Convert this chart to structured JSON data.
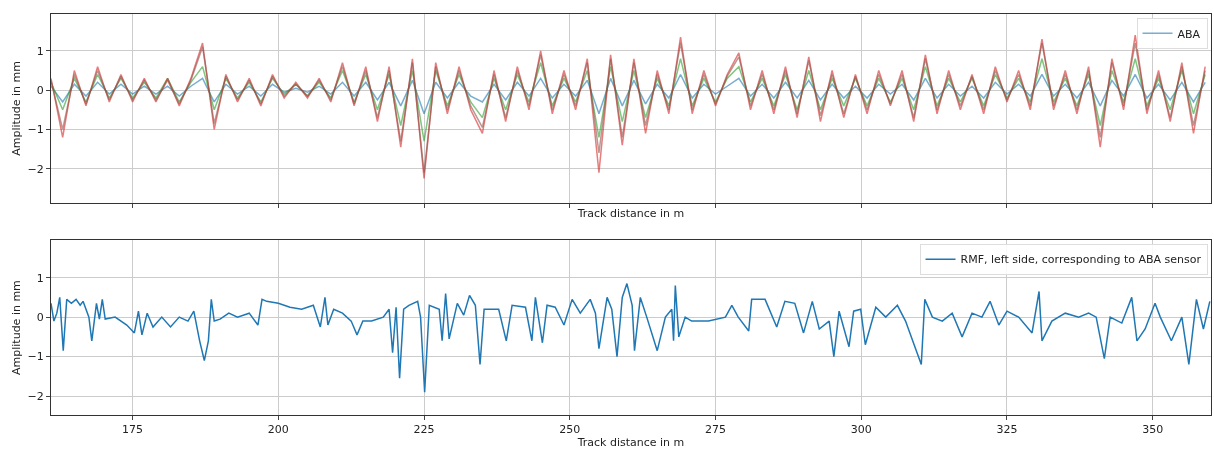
{
  "chart_data": [
    {
      "type": "line",
      "xlabel": "Track distance in m",
      "ylabel": "Amplitude in mm",
      "xlim": [
        161,
        360
      ],
      "ylim": [
        -2.87,
        1.94
      ],
      "xticks": [
        175,
        200,
        225,
        250,
        275,
        300,
        325,
        350
      ],
      "yticks": [
        -2,
        -1,
        0,
        1
      ],
      "grid": true,
      "legend": "top right",
      "tick_labels": "y",
      "x": [
        161,
        163,
        165,
        167,
        169,
        171,
        173,
        175,
        177,
        179,
        181,
        183,
        185,
        187,
        189,
        191,
        193,
        195,
        197,
        199,
        201,
        203,
        205,
        207,
        209,
        211,
        213,
        215,
        217,
        219,
        221,
        223,
        225,
        227,
        229,
        231,
        233,
        235,
        237,
        239,
        241,
        243,
        245,
        247,
        249,
        251,
        253,
        255,
        257,
        259,
        261,
        263,
        265,
        267,
        269,
        271,
        273,
        275,
        277,
        279,
        281,
        283,
        285,
        287,
        289,
        291,
        293,
        295,
        297,
        299,
        301,
        303,
        305,
        307,
        309,
        311,
        313,
        315,
        317,
        319,
        321,
        323,
        325,
        327,
        329,
        331,
        333,
        335,
        337,
        339,
        341,
        343,
        345,
        347,
        349,
        351,
        353,
        355,
        357,
        359
      ],
      "series": [
        {
          "name": "ABA",
          "color": "#1f77b4",
          "values": [
            0.1,
            -0.3,
            0.15,
            -0.15,
            0.2,
            -0.1,
            0.15,
            -0.1,
            0.1,
            -0.1,
            0.1,
            -0.15,
            0.1,
            0.3,
            -0.3,
            0.15,
            -0.1,
            0.1,
            -0.15,
            0.15,
            -0.05,
            0.05,
            -0.05,
            0.1,
            -0.1,
            0.2,
            -0.15,
            0.2,
            -0.25,
            0.2,
            -0.4,
            0.25,
            -0.6,
            0.2,
            -0.2,
            0.2,
            -0.15,
            -0.3,
            0.15,
            -0.25,
            0.2,
            -0.15,
            0.3,
            -0.2,
            0.15,
            -0.15,
            0.25,
            -0.6,
            0.3,
            -0.4,
            0.25,
            -0.35,
            0.15,
            -0.2,
            0.4,
            -0.2,
            0.15,
            -0.1,
            0.1,
            0.3,
            -0.15,
            0.15,
            -0.2,
            0.2,
            -0.2,
            0.25,
            -0.25,
            0.15,
            -0.2,
            0.1,
            -0.2,
            0.15,
            -0.1,
            0.15,
            -0.25,
            0.3,
            -0.2,
            0.15,
            -0.15,
            0.1,
            -0.2,
            0.2,
            -0.1,
            0.15,
            -0.15,
            0.4,
            -0.15,
            0.15,
            -0.2,
            0.2,
            -0.4,
            0.25,
            -0.15,
            0.4,
            -0.2,
            0.15,
            -0.25,
            0.2,
            -0.3,
            0.2
          ]
        },
        {
          "color": "#2ca02c",
          "values": [
            0.2,
            -0.5,
            0.3,
            -0.3,
            0.4,
            -0.2,
            0.3,
            -0.2,
            0.2,
            -0.2,
            0.3,
            -0.3,
            0.2,
            0.6,
            -0.5,
            0.3,
            -0.2,
            0.2,
            -0.3,
            0.3,
            -0.1,
            0.15,
            -0.15,
            0.2,
            -0.2,
            0.5,
            -0.3,
            0.4,
            -0.5,
            0.4,
            -0.9,
            0.5,
            -1.3,
            0.5,
            -0.4,
            0.4,
            -0.3,
            -0.7,
            0.3,
            -0.5,
            0.4,
            -0.3,
            0.7,
            -0.4,
            0.3,
            -0.3,
            0.5,
            -1.2,
            0.6,
            -0.8,
            0.5,
            -0.7,
            0.3,
            -0.4,
            0.8,
            -0.4,
            0.3,
            -0.3,
            0.3,
            0.6,
            -0.3,
            0.3,
            -0.4,
            0.4,
            -0.5,
            0.5,
            -0.5,
            0.3,
            -0.4,
            0.3,
            -0.4,
            0.3,
            -0.3,
            0.3,
            -0.5,
            0.6,
            -0.4,
            0.3,
            -0.3,
            0.3,
            -0.4,
            0.4,
            -0.2,
            0.3,
            -0.3,
            0.8,
            -0.3,
            0.3,
            -0.4,
            0.4,
            -0.9,
            0.5,
            -0.3,
            0.8,
            -0.4,
            0.3,
            -0.5,
            0.5,
            -0.6,
            0.4
          ]
        },
        {
          "color": "#d62728",
          "values": [
            0.3,
            -1.2,
            0.5,
            -0.4,
            0.6,
            -0.3,
            0.4,
            -0.3,
            0.3,
            -0.3,
            0.3,
            -0.4,
            0.3,
            1.2,
            -1.0,
            0.4,
            -0.3,
            0.3,
            -0.4,
            0.4,
            -0.2,
            0.2,
            -0.2,
            0.3,
            -0.3,
            0.7,
            -0.4,
            0.6,
            -0.8,
            0.6,
            -1.45,
            0.8,
            -2.25,
            0.7,
            -0.6,
            0.6,
            -0.5,
            -1.1,
            0.5,
            -0.8,
            0.6,
            -0.5,
            1.0,
            -0.6,
            0.5,
            -0.5,
            0.8,
            -2.1,
            0.9,
            -1.4,
            0.8,
            -1.1,
            0.5,
            -0.6,
            1.35,
            -0.6,
            0.5,
            -0.4,
            0.4,
            0.95,
            -0.5,
            0.5,
            -0.6,
            0.6,
            -0.7,
            0.85,
            -0.8,
            0.5,
            -0.7,
            0.4,
            -0.6,
            0.5,
            -0.4,
            0.5,
            -0.8,
            0.9,
            -0.6,
            0.5,
            -0.5,
            0.4,
            -0.6,
            0.6,
            -0.3,
            0.5,
            -0.5,
            1.3,
            -0.5,
            0.5,
            -0.6,
            0.6,
            -1.45,
            0.8,
            -0.5,
            1.4,
            -0.6,
            0.5,
            -0.8,
            0.7,
            -1.1,
            0.6
          ]
        },
        {
          "color": "#8c564b",
          "values": [
            0.25,
            -1.0,
            0.4,
            -0.35,
            0.5,
            -0.25,
            0.35,
            -0.25,
            0.25,
            -0.25,
            0.25,
            -0.35,
            0.25,
            1.1,
            -0.85,
            0.35,
            -0.25,
            0.25,
            -0.35,
            0.35,
            -0.15,
            0.15,
            -0.15,
            0.25,
            -0.25,
            0.6,
            -0.35,
            0.5,
            -0.7,
            0.5,
            -1.3,
            0.7,
            -2.1,
            0.6,
            -0.5,
            0.5,
            -0.4,
            -0.95,
            0.4,
            -0.7,
            0.5,
            -0.4,
            0.9,
            -0.5,
            0.4,
            -0.4,
            0.7,
            -1.6,
            0.8,
            -1.2,
            0.7,
            -0.9,
            0.4,
            -0.5,
            1.2,
            -0.5,
            0.4,
            -0.35,
            0.35,
            0.85,
            -0.4,
            0.4,
            -0.5,
            0.5,
            -0.6,
            0.75,
            -0.65,
            0.4,
            -0.6,
            0.35,
            -0.5,
            0.4,
            -0.35,
            0.4,
            -0.7,
            0.8,
            -0.5,
            0.4,
            -0.4,
            0.35,
            -0.5,
            0.5,
            -0.25,
            0.4,
            -0.4,
            1.2,
            -0.4,
            0.4,
            -0.5,
            0.5,
            -1.2,
            0.7,
            -0.4,
            1.2,
            -0.5,
            0.4,
            -0.7,
            0.6,
            -0.9,
            0.5
          ]
        }
      ]
    },
    {
      "type": "line",
      "xlabel": "Track distance in m",
      "ylabel": "Amplitude in mm",
      "xlim": [
        161,
        360
      ],
      "ylim": [
        -2.48,
        1.95
      ],
      "xticks": [
        175,
        200,
        225,
        250,
        275,
        300,
        325,
        350
      ],
      "yticks": [
        -2,
        -1,
        0,
        1
      ],
      "grid": true,
      "legend": "top right",
      "series": [
        {
          "name": "RMF, left side, corresponding to ABA sensor",
          "color": "#1f77b4",
          "x": [
            161,
            161.5,
            162,
            162.5,
            163.1,
            163.7,
            164.5,
            165.3,
            166,
            166.5,
            167.5,
            168,
            168.8,
            169.3,
            169.8,
            170.3,
            172,
            174,
            175.3,
            176,
            176.6,
            177.5,
            178.5,
            180,
            181.5,
            183,
            184.5,
            185.5,
            186.5,
            187.3,
            188,
            188.5,
            189,
            190,
            191.5,
            193,
            195,
            196.5,
            197.2,
            198,
            200,
            202,
            204,
            206,
            207.2,
            208,
            208.5,
            209.5,
            211,
            212.5,
            213.5,
            214.5,
            216,
            218,
            219,
            219.6,
            220.2,
            220.8,
            221.5,
            222.4,
            223.9,
            224.4,
            225.1,
            225.9,
            227.6,
            228.1,
            228.7,
            229.3,
            230.7,
            231.8,
            232.8,
            233.8,
            234.6,
            235.3,
            237.8,
            239.1,
            240.1,
            242.4,
            243.5,
            244.1,
            245.3,
            246.1,
            247.5,
            249,
            250.4,
            251.8,
            253.5,
            254.4,
            255,
            256.4,
            257.2,
            258.1,
            259,
            259.8,
            260.7,
            261.1,
            262.1,
            263.2,
            265,
            266.4,
            267.5,
            267.8,
            268.1,
            268.7,
            269.8,
            270.9,
            273.8,
            276.7,
            277.8,
            278.9,
            280.7,
            281.2,
            283.5,
            285.5,
            286.9,
            288.6,
            290.1,
            291.6,
            292.8,
            294.5,
            295.3,
            296.2,
            297.9,
            298.7,
            299.9,
            300.7,
            302.5,
            304.2,
            306.2,
            307.6,
            308.7,
            310.3,
            310.9,
            312.2,
            313.9,
            315.6,
            317.3,
            319,
            320.7,
            322.1,
            323.6,
            325,
            327,
            329.3,
            330.5,
            331,
            332.7,
            335,
            337.3,
            339,
            340.3,
            341.7,
            342.7,
            344.7,
            346.4,
            347.3,
            348.7,
            350.4,
            351.3,
            353.2,
            355,
            356.2,
            357.5,
            358.7,
            359.8
          ],
          "values": [
            0.35,
            -0.1,
            0.1,
            0.5,
            -0.85,
            0.45,
            0.35,
            0.45,
            0.3,
            0.4,
            0.0,
            -0.6,
            0.35,
            -0.05,
            0.45,
            -0.05,
            0.0,
            -0.2,
            -0.4,
            0.15,
            -0.45,
            0.1,
            -0.25,
            0.0,
            -0.25,
            0.0,
            -0.1,
            0.15,
            -0.6,
            -1.1,
            -0.6,
            0.45,
            -0.1,
            -0.05,
            0.1,
            0.0,
            0.1,
            -0.2,
            0.45,
            0.4,
            0.35,
            0.25,
            0.2,
            0.3,
            -0.25,
            0.5,
            -0.2,
            0.2,
            0.1,
            -0.1,
            -0.45,
            -0.1,
            -0.1,
            0.0,
            0.2,
            -0.9,
            0.25,
            -1.55,
            0.2,
            0.3,
            0.4,
            0.0,
            -1.9,
            0.3,
            0.2,
            -0.6,
            0.6,
            -0.55,
            0.35,
            0.05,
            0.55,
            0.3,
            -1.2,
            0.2,
            0.2,
            -0.6,
            0.3,
            0.25,
            -0.6,
            0.5,
            -0.65,
            0.3,
            0.25,
            -0.2,
            0.45,
            0.1,
            0.45,
            0.1,
            -0.8,
            0.5,
            0.2,
            -1.0,
            0.5,
            0.85,
            0.3,
            -0.85,
            0.5,
            0.0,
            -0.85,
            0.0,
            0.2,
            -0.6,
            0.8,
            -0.5,
            0.0,
            -0.1,
            -0.1,
            0.0,
            0.3,
            0.0,
            -0.35,
            0.45,
            0.45,
            -0.25,
            0.4,
            0.35,
            -0.4,
            0.4,
            -0.3,
            -0.1,
            -1.0,
            0.15,
            -0.75,
            0.15,
            0.2,
            -0.7,
            0.25,
            0.0,
            0.3,
            -0.1,
            -0.55,
            -1.2,
            0.45,
            0.0,
            -0.1,
            0.1,
            -0.5,
            0.1,
            0.0,
            0.4,
            -0.2,
            0.15,
            0.0,
            -0.4,
            0.65,
            -0.6,
            -0.1,
            0.1,
            0.0,
            0.1,
            0.0,
            -1.05,
            0.0,
            -0.15,
            0.5,
            -0.6,
            -0.3,
            0.35,
            0.0,
            -0.6,
            0.0,
            -1.2,
            0.45,
            -0.3,
            0.4
          ]
        }
      ]
    }
  ]
}
